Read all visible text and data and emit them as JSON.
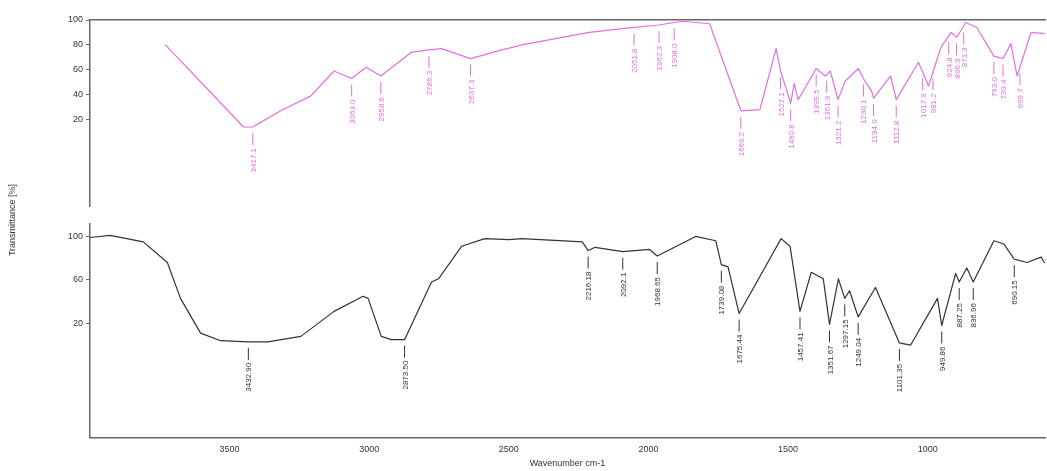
{
  "chart_data": [
    {
      "type": "line",
      "ylabel": "Transmittance [%]",
      "xlim": [
        4000,
        580
      ],
      "xticks": [
        3500,
        3000,
        2500,
        2000,
        1500,
        1000
      ],
      "ylim": [
        -50,
        100
      ],
      "yticks": [
        20,
        40,
        60,
        80,
        100
      ],
      "tick_labels": "y",
      "grid": false,
      "legend": false,
      "marker": "none",
      "line_style": "solid",
      "x": [
        3730,
        3450,
        3417.1,
        3317,
        3209,
        3126,
        3063,
        3011,
        2958.6,
        2849,
        2786.3,
        2741,
        2637.3,
        2525,
        2453,
        2212,
        2094,
        2051.8,
        1962.3,
        1908,
        1878,
        1781,
        1669.2,
        1601,
        1543,
        1527.1,
        1507,
        1490.8,
        1478,
        1464,
        1435,
        1399.5,
        1367,
        1361.9,
        1349,
        1321.2,
        1295,
        1248,
        1230.1,
        1220,
        1201,
        1194,
        1133,
        1112.8,
        1033,
        1017.9,
        997,
        981.2,
        953,
        924.8,
        917,
        896.9,
        871.3,
        864,
        824,
        763,
        730.4,
        702,
        680,
        669.7,
        630,
        582
      ],
      "series": [
        {
          "color": "#e070e0",
          "values": [
            80,
            14,
            14,
            27,
            39,
            59,
            53,
            62,
            55,
            74,
            76,
            77,
            69,
            76,
            80,
            90,
            93,
            94,
            96,
            98,
            99,
            97,
            27,
            28,
            77,
            59,
            45,
            33,
            49,
            36,
            47,
            61,
            55,
            56,
            59,
            36,
            51,
            61,
            53,
            49,
            43,
            37,
            55,
            36,
            66,
            58,
            47,
            58,
            78,
            87,
            90,
            86,
            95,
            98,
            94,
            71,
            69,
            81,
            55,
            62,
            90,
            89
          ]
        }
      ],
      "annotations": [
        {
          "text": "3417.1",
          "x": 3417.1,
          "y": 14
        },
        {
          "text": "3063.0",
          "x": 3063,
          "y": 53
        },
        {
          "text": "2958.6",
          "x": 2958.6,
          "y": 55
        },
        {
          "text": "2786.3",
          "x": 2786.3,
          "y": 76
        },
        {
          "text": "2637.3",
          "x": 2637.3,
          "y": 69
        },
        {
          "text": "2051.8",
          "x": 2051.8,
          "y": 94
        },
        {
          "text": "1962.3",
          "x": 1962.3,
          "y": 96
        },
        {
          "text": "1908.0",
          "x": 1908,
          "y": 98
        },
        {
          "text": "1669.2",
          "x": 1669.2,
          "y": 27
        },
        {
          "text": "1527.1",
          "x": 1527.1,
          "y": 59
        },
        {
          "text": "1490.8",
          "x": 1490.8,
          "y": 33
        },
        {
          "text": "1399.5",
          "x": 1399.5,
          "y": 61
        },
        {
          "text": "1361.9",
          "x": 1361.9,
          "y": 56
        },
        {
          "text": "1321.2",
          "x": 1321.2,
          "y": 36
        },
        {
          "text": "1230.1",
          "x": 1230.1,
          "y": 53
        },
        {
          "text": "1194.0",
          "x": 1194,
          "y": 37
        },
        {
          "text": "1112.8",
          "x": 1112.8,
          "y": 36
        },
        {
          "text": "1017.9",
          "x": 1017.9,
          "y": 58
        },
        {
          "text": "981.2",
          "x": 981.2,
          "y": 58
        },
        {
          "text": "924.8",
          "x": 924.8,
          "y": 87
        },
        {
          "text": "896.9",
          "x": 896.9,
          "y": 86
        },
        {
          "text": "871.3",
          "x": 871.3,
          "y": 95
        },
        {
          "text": "763.0",
          "x": 763,
          "y": 71
        },
        {
          "text": "730.4",
          "x": 730.4,
          "y": 69
        },
        {
          "text": "669.7",
          "x": 669.7,
          "y": 62
        }
      ]
    },
    {
      "type": "line",
      "xlabel": "Wavenumber cm-1",
      "xlim": [
        4000,
        580
      ],
      "xticks": [
        3500,
        3000,
        2500,
        2000,
        1500,
        1000
      ],
      "ylim": [
        -85,
        112
      ],
      "yticks": [
        20,
        60,
        100
      ],
      "grid": false,
      "legend": false,
      "marker": "none",
      "line_style": "solid",
      "x": [
        4000,
        3928,
        3809,
        3723,
        3676,
        3604,
        3532,
        3432.9,
        3363,
        3245,
        3126,
        3022,
        3004,
        2957,
        2921,
        2873.5,
        2777,
        2752,
        2669,
        2586,
        2500,
        2453,
        2237,
        2216.18,
        2191,
        2092.1,
        1996,
        1968.65,
        1831,
        1759,
        1739.08,
        1715,
        1675.44,
        1525,
        1493,
        1457.41,
        1417,
        1374,
        1351.67,
        1320,
        1297.15,
        1280,
        1249.04,
        1187,
        1101.35,
        1061,
        965,
        949.86,
        900,
        887.25,
        860,
        836.96,
        763,
        727,
        690.15,
        644,
        594,
        582
      ],
      "series": [
        {
          "color": "#333333",
          "values": [
            99,
            101,
            95,
            76,
            43,
            11,
            4,
            3,
            3,
            8,
            31,
            45,
            43,
            8,
            5,
            5,
            58,
            61,
            91,
            98,
            97,
            98,
            95,
            87,
            90,
            86,
            88,
            82,
            100,
            96,
            74,
            72,
            29,
            98,
            91,
            31,
            67,
            61,
            19,
            61,
            43,
            50,
            26,
            53,
            2,
            0,
            43,
            18,
            66,
            58,
            71,
            58,
            96,
            93,
            79,
            76,
            81,
            76
          ]
        }
      ],
      "annotations": [
        {
          "text": "3432.90",
          "x": 3432.9,
          "y": 3
        },
        {
          "text": "2873.50",
          "x": 2873.5,
          "y": 5
        },
        {
          "text": "2216.18",
          "x": 2216.18,
          "y": 87
        },
        {
          "text": "2092.1",
          "x": 2092.1,
          "y": 86
        },
        {
          "text": "1968.65",
          "x": 1968.65,
          "y": 82
        },
        {
          "text": "1739.08",
          "x": 1739.08,
          "y": 74
        },
        {
          "text": "1675.44",
          "x": 1675.44,
          "y": 29
        },
        {
          "text": "1457.41",
          "x": 1457.41,
          "y": 31
        },
        {
          "text": "1351.67",
          "x": 1351.67,
          "y": 19
        },
        {
          "text": "1297.15",
          "x": 1297.15,
          "y": 43
        },
        {
          "text": "1249.04",
          "x": 1249.04,
          "y": 26
        },
        {
          "text": "1101.35",
          "x": 1101.35,
          "y": 2
        },
        {
          "text": "949.86",
          "x": 949.86,
          "y": 18
        },
        {
          "text": "887.25",
          "x": 887.25,
          "y": 58
        },
        {
          "text": "836.96",
          "x": 836.96,
          "y": 58
        },
        {
          "text": "690.15",
          "x": 690.15,
          "y": 79
        }
      ]
    }
  ]
}
